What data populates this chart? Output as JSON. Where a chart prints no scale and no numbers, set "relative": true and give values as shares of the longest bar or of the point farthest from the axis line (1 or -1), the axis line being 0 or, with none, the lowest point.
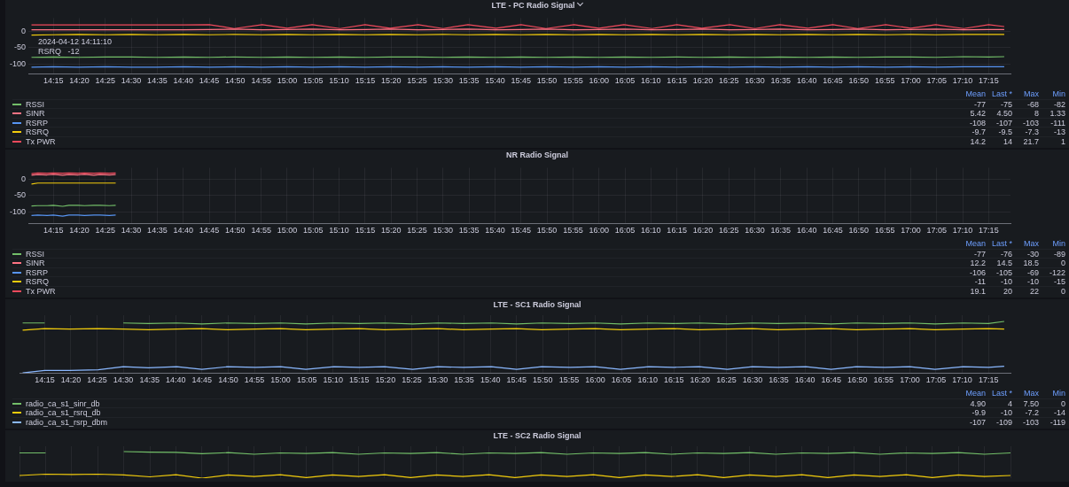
{
  "chart_data": [
    {
      "type": "line",
      "title": "LTE - PC Radio Signal",
      "legend": "bottom",
      "grid": true,
      "xlim": [
        14.17,
        17.32
      ],
      "ylim": [
        -130,
        40
      ],
      "yticks": [
        -100,
        -50,
        0
      ],
      "xticks": [
        {
          "value": 14.25,
          "label": "14:15"
        },
        {
          "value": 14.3333,
          "label": "14:20"
        },
        {
          "value": 14.4167,
          "label": "14:25"
        },
        {
          "value": 14.5,
          "label": "14:30"
        },
        {
          "value": 14.5833,
          "label": "14:35"
        },
        {
          "value": 14.6667,
          "label": "14:40"
        },
        {
          "value": 14.75,
          "label": "14:45"
        },
        {
          "value": 14.8333,
          "label": "14:50"
        },
        {
          "value": 14.9167,
          "label": "14:55"
        },
        {
          "value": 15,
          "label": "15:00"
        },
        {
          "value": 15.0833,
          "label": "15:05"
        },
        {
          "value": 15.1667,
          "label": "15:10"
        },
        {
          "value": 15.25,
          "label": "15:15"
        },
        {
          "value": 15.3333,
          "label": "15:20"
        },
        {
          "value": 15.4167,
          "label": "15:25"
        },
        {
          "value": 15.5,
          "label": "15:30"
        },
        {
          "value": 15.5833,
          "label": "15:35"
        },
        {
          "value": 15.6667,
          "label": "15:40"
        },
        {
          "value": 15.75,
          "label": "15:45"
        },
        {
          "value": 15.8333,
          "label": "15:50"
        },
        {
          "value": 15.9167,
          "label": "15:55"
        },
        {
          "value": 16,
          "label": "16:00"
        },
        {
          "value": 16.0833,
          "label": "16:05"
        },
        {
          "value": 16.1667,
          "label": "16:10"
        },
        {
          "value": 16.25,
          "label": "16:15"
        },
        {
          "value": 16.3333,
          "label": "16:20"
        },
        {
          "value": 16.4167,
          "label": "16:25"
        },
        {
          "value": 16.5,
          "label": "16:30"
        },
        {
          "value": 16.5833,
          "label": "16:35"
        },
        {
          "value": 16.6667,
          "label": "16:40"
        },
        {
          "value": 16.75,
          "label": "16:45"
        },
        {
          "value": 16.8333,
          "label": "16:50"
        },
        {
          "value": 16.9167,
          "label": "16:55"
        },
        {
          "value": 17,
          "label": "17:00"
        },
        {
          "value": 17.0833,
          "label": "17:05"
        },
        {
          "value": 17.1667,
          "label": "17:10"
        },
        {
          "value": 17.25,
          "label": "17:15"
        }
      ],
      "x": [
        14.18,
        14.25,
        14.33,
        14.42,
        14.5,
        14.58,
        14.67,
        14.75,
        14.83,
        14.92,
        15,
        15.08,
        15.17,
        15.25,
        15.33,
        15.42,
        15.5,
        15.58,
        15.67,
        15.75,
        15.83,
        15.92,
        16,
        16.08,
        16.17,
        16.25,
        16.33,
        16.42,
        16.5,
        16.58,
        16.67,
        16.75,
        16.83,
        16.92,
        17,
        17.08,
        17.17,
        17.25,
        17.3
      ],
      "series": [
        {
          "name": "RSSI",
          "color": "#73bf69",
          "values": [
            -80,
            -79,
            -80,
            -79,
            -79,
            -80,
            -79,
            -80,
            -79,
            -80,
            -79,
            -80,
            -79,
            -80,
            -79,
            -79,
            -80,
            -79,
            -80,
            -79,
            -80,
            -79,
            -80,
            -79,
            -80,
            -79,
            -80,
            -79,
            -80,
            -79,
            -80,
            -79,
            -80,
            -79,
            -79,
            -80,
            -78,
            -79,
            -78
          ]
        },
        {
          "name": "SINR",
          "color": "#ff7383",
          "values": [
            4,
            4,
            4,
            4,
            4,
            4,
            4,
            5,
            6,
            4,
            5,
            6,
            4,
            5,
            6,
            4,
            5,
            6,
            4,
            5,
            6,
            4,
            5,
            6,
            4,
            5,
            6,
            4,
            5,
            6,
            4,
            5,
            6,
            4,
            5,
            6,
            4,
            5,
            5
          ]
        },
        {
          "name": "RSRP",
          "color": "#5794f2",
          "values": [
            -110,
            -109,
            -110,
            -109,
            -110,
            -110,
            -109,
            -110,
            -109,
            -110,
            -109,
            -110,
            -109,
            -110,
            -109,
            -110,
            -109,
            -110,
            -109,
            -110,
            -109,
            -110,
            -109,
            -110,
            -109,
            -110,
            -109,
            -110,
            -109,
            -110,
            -109,
            -110,
            -109,
            -110,
            -109,
            -110,
            -109,
            -109,
            -109
          ]
        },
        {
          "name": "RSRQ",
          "color": "#f2cc0c",
          "values": [
            -12,
            -11,
            -10,
            -11,
            -10,
            -11,
            -10,
            -11,
            -10,
            -11,
            -10,
            -11,
            -10,
            -11,
            -10,
            -11,
            -10,
            -11,
            -10,
            -11,
            -10,
            -11,
            -10,
            -11,
            -10,
            -11,
            -10,
            -11,
            -10,
            -11,
            -10,
            -11,
            -10,
            -11,
            -10,
            -11,
            -10,
            -10,
            -10
          ]
        },
        {
          "name": "Tx PWR",
          "color": "#f2495c",
          "values": [
            19,
            19,
            19,
            19,
            19,
            19,
            19,
            20,
            8,
            20,
            9,
            20,
            8,
            20,
            9,
            20,
            8,
            20,
            9,
            20,
            8,
            20,
            9,
            20,
            8,
            20,
            9,
            20,
            8,
            20,
            9,
            20,
            8,
            20,
            9,
            20,
            8,
            20,
            14
          ]
        }
      ],
      "annotations": [
        {
          "text": "2024-04-12 14:11:10",
          "x": 14.19,
          "y": -12
        },
        {
          "text": "RSRQ   -12",
          "x": 14.19,
          "y": -12
        },
        "Mean",
        "Last *",
        "Max",
        "Min",
        "-77",
        "-75",
        "-68",
        "-82",
        "5.42",
        "4.50",
        "8",
        "1.33",
        "-108",
        "-107",
        "-103",
        "-111",
        "-9.7",
        "-9.5",
        "-7.3",
        "-13",
        "14.2",
        "14",
        "21.7",
        "1"
      ]
    },
    {
      "type": "line",
      "title": "NR Radio Signal",
      "legend": "bottom",
      "grid": true,
      "xlim": [
        14.17,
        17.32
      ],
      "ylim": [
        -135,
        35
      ],
      "yticks": [
        -100,
        -50,
        0
      ],
      "xticks": [
        {
          "value": 14.25,
          "label": "14:15"
        },
        {
          "value": 14.3333,
          "label": "14:20"
        },
        {
          "value": 14.4167,
          "label": "14:25"
        },
        {
          "value": 14.5,
          "label": "14:30"
        },
        {
          "value": 14.5833,
          "label": "14:35"
        },
        {
          "value": 14.6667,
          "label": "14:40"
        },
        {
          "value": 14.75,
          "label": "14:45"
        },
        {
          "value": 14.8333,
          "label": "14:50"
        },
        {
          "value": 14.9167,
          "label": "14:55"
        },
        {
          "value": 15,
          "label": "15:00"
        },
        {
          "value": 15.0833,
          "label": "15:05"
        },
        {
          "value": 15.1667,
          "label": "15:10"
        },
        {
          "value": 15.25,
          "label": "15:15"
        },
        {
          "value": 15.3333,
          "label": "15:20"
        },
        {
          "value": 15.4167,
          "label": "15:25"
        },
        {
          "value": 15.5,
          "label": "15:30"
        },
        {
          "value": 15.5833,
          "label": "15:35"
        },
        {
          "value": 15.6667,
          "label": "15:40"
        },
        {
          "value": 15.75,
          "label": "15:45"
        },
        {
          "value": 15.8333,
          "label": "15:50"
        },
        {
          "value": 15.9167,
          "label": "15:55"
        },
        {
          "value": 16,
          "label": "16:00"
        },
        {
          "value": 16.0833,
          "label": "16:05"
        },
        {
          "value": 16.1667,
          "label": "16:10"
        },
        {
          "value": 16.25,
          "label": "16:15"
        },
        {
          "value": 16.3333,
          "label": "16:20"
        },
        {
          "value": 16.4167,
          "label": "16:25"
        },
        {
          "value": 16.5,
          "label": "16:30"
        },
        {
          "value": 16.5833,
          "label": "16:35"
        },
        {
          "value": 16.6667,
          "label": "16:40"
        },
        {
          "value": 16.75,
          "label": "16:45"
        },
        {
          "value": 16.8333,
          "label": "16:50"
        },
        {
          "value": 16.9167,
          "label": "16:55"
        },
        {
          "value": 17,
          "label": "17:00"
        },
        {
          "value": 17.0833,
          "label": "17:05"
        },
        {
          "value": 17.1667,
          "label": "17:10"
        },
        {
          "value": 17.25,
          "label": "17:15"
        }
      ],
      "x": [
        14.18,
        14.2,
        14.23,
        14.25,
        14.28,
        14.3,
        14.33,
        14.35,
        14.38,
        14.4,
        14.43,
        14.45
      ],
      "series": [
        {
          "name": "RSSI",
          "color": "#73bf69",
          "values": [
            -82,
            -81,
            -81,
            -80,
            -83,
            -80,
            -80,
            -81,
            -80,
            -80,
            -81,
            -80
          ]
        },
        {
          "name": "SINR",
          "color": "#ff7383",
          "values": [
            12,
            14,
            13,
            15,
            12,
            14,
            13,
            15,
            12,
            14,
            13,
            14
          ]
        },
        {
          "name": "RSRP",
          "color": "#5794f2",
          "values": [
            -111,
            -110,
            -111,
            -110,
            -113,
            -110,
            -110,
            -111,
            -110,
            -110,
            -111,
            -110
          ]
        },
        {
          "name": "RSRQ",
          "color": "#f2cc0c",
          "values": [
            -15,
            -12,
            -12,
            -12,
            -12,
            -12,
            -12,
            -12,
            -12,
            -12,
            -12,
            -12
          ]
        },
        {
          "name": "Tx PWR",
          "color": "#f2495c",
          "values": [
            17,
            19,
            18,
            19,
            18,
            19,
            18,
            19,
            18,
            19,
            18,
            19
          ]
        }
      ],
      "annotations": [
        "Mean",
        "Last *",
        "Max",
        "Min",
        "-77",
        "-76",
        "-30",
        "-89",
        "12.2",
        "14.5",
        "18.5",
        "0",
        "-106",
        "-105",
        "-69",
        "-122",
        "-11",
        "-10",
        "-10",
        "-15",
        "19.1",
        "20",
        "22",
        "0"
      ]
    },
    {
      "type": "line",
      "title": "LTE - SC1 Radio Signal",
      "legend": "bottom",
      "grid": "x",
      "relative": true,
      "xlim": [
        14.17,
        17.32
      ],
      "xticks": [
        {
          "value": 14.25,
          "label": "14:15"
        },
        {
          "value": 14.3333,
          "label": "14:20"
        },
        {
          "value": 14.4167,
          "label": "14:25"
        },
        {
          "value": 14.5,
          "label": "14:30"
        },
        {
          "value": 14.5833,
          "label": "14:35"
        },
        {
          "value": 14.6667,
          "label": "14:40"
        },
        {
          "value": 14.75,
          "label": "14:45"
        },
        {
          "value": 14.8333,
          "label": "14:50"
        },
        {
          "value": 14.9167,
          "label": "14:55"
        },
        {
          "value": 15,
          "label": "15:00"
        },
        {
          "value": 15.0833,
          "label": "15:05"
        },
        {
          "value": 15.1667,
          "label": "15:10"
        },
        {
          "value": 15.25,
          "label": "15:15"
        },
        {
          "value": 15.3333,
          "label": "15:20"
        },
        {
          "value": 15.4167,
          "label": "15:25"
        },
        {
          "value": 15.5,
          "label": "15:30"
        },
        {
          "value": 15.5833,
          "label": "15:35"
        },
        {
          "value": 15.6667,
          "label": "15:40"
        },
        {
          "value": 15.75,
          "label": "15:45"
        },
        {
          "value": 15.8333,
          "label": "15:50"
        },
        {
          "value": 15.9167,
          "label": "15:55"
        },
        {
          "value": 16,
          "label": "16:00"
        },
        {
          "value": 16.0833,
          "label": "16:05"
        },
        {
          "value": 16.1667,
          "label": "16:10"
        },
        {
          "value": 16.25,
          "label": "16:15"
        },
        {
          "value": 16.3333,
          "label": "16:20"
        },
        {
          "value": 16.4167,
          "label": "16:25"
        },
        {
          "value": 16.5,
          "label": "16:30"
        },
        {
          "value": 16.5833,
          "label": "16:35"
        },
        {
          "value": 16.6667,
          "label": "16:40"
        },
        {
          "value": 16.75,
          "label": "16:45"
        },
        {
          "value": 16.8333,
          "label": "16:50"
        },
        {
          "value": 16.9167,
          "label": "16:55"
        },
        {
          "value": 17,
          "label": "17:00"
        },
        {
          "value": 17.0833,
          "label": "17:05"
        },
        {
          "value": 17.1667,
          "label": "17:10"
        },
        {
          "value": 17.25,
          "label": "17:15"
        }
      ],
      "x": [
        14.18,
        14.25,
        14.33,
        14.42,
        14.5,
        14.58,
        14.67,
        14.75,
        14.83,
        14.92,
        15,
        15.08,
        15.17,
        15.25,
        15.33,
        15.42,
        15.5,
        15.58,
        15.67,
        15.75,
        15.83,
        15.92,
        16,
        16.08,
        16.17,
        16.25,
        16.33,
        16.42,
        16.5,
        16.58,
        16.67,
        16.75,
        16.83,
        16.92,
        17,
        17.08,
        17.17,
        17.25,
        17.3
      ],
      "series": [
        {
          "name": "radio_ca_s1_sinr_db",
          "color": "#73bf69",
          "values": [
            0.97,
            0.97,
            null,
            null,
            0.97,
            0.96,
            0.97,
            0.95,
            0.97,
            0.96,
            0.97,
            0.95,
            0.97,
            0.96,
            0.97,
            0.95,
            0.97,
            0.96,
            0.97,
            0.95,
            0.97,
            0.96,
            0.97,
            0.95,
            0.97,
            0.96,
            0.97,
            0.95,
            0.97,
            0.96,
            0.97,
            0.95,
            0.97,
            0.96,
            0.97,
            0.95,
            0.97,
            0.96,
            1
          ]
        },
        {
          "name": "radio_ca_s1_rsrq_db",
          "color": "#f2cc0c",
          "values": [
            0.83,
            0.86,
            0.85,
            0.86,
            0.85,
            0.84,
            0.85,
            0.86,
            0.84,
            0.85,
            0.86,
            0.84,
            0.85,
            0.86,
            0.84,
            0.85,
            0.86,
            0.84,
            0.85,
            0.86,
            0.84,
            0.85,
            0.86,
            0.84,
            0.85,
            0.86,
            0.84,
            0.85,
            0.86,
            0.84,
            0.85,
            0.86,
            0.84,
            0.85,
            0.86,
            0.84,
            0.85,
            0.86,
            0.85
          ]
        },
        {
          "name": "radio_ca_s1_rsrp_dbm",
          "color": "#8ab8ff",
          "values": [
            0,
            0.05,
            0.05,
            0.06,
            0.12,
            0.1,
            0.12,
            0.07,
            0.12,
            0.11,
            0.12,
            0.07,
            0.12,
            0.11,
            0.12,
            0.07,
            0.12,
            0.11,
            0.12,
            0.07,
            0.12,
            0.11,
            0.12,
            0.07,
            0.12,
            0.11,
            0.12,
            0.07,
            0.12,
            0.11,
            0.12,
            0.07,
            0.12,
            0.11,
            0.12,
            0.07,
            0.12,
            0.11,
            0.13
          ]
        }
      ],
      "annotations": [
        "Mean",
        "Last *",
        "Max",
        "Min",
        "4.90",
        "4",
        "7.50",
        "0",
        "-9.9",
        "-10",
        "-7.2",
        "-14",
        "-107",
        "-109",
        "-103",
        "-119"
      ]
    },
    {
      "type": "line",
      "title": "LTE - SC2 Radio Signal",
      "grid": "x",
      "relative": true,
      "tick_labels": false,
      "categories": [
        null,
        null,
        null,
        null,
        null,
        null,
        null,
        null,
        null,
        null,
        null,
        null,
        null,
        null,
        null,
        null,
        null,
        null,
        null,
        null,
        null,
        null,
        null,
        null,
        null,
        null,
        null,
        null,
        null,
        null,
        null,
        null,
        null,
        null,
        null,
        null,
        null,
        null,
        null
      ],
      "series": [
        {
          "color": "#73bf69",
          "values": [
            0.95,
            0.95,
            null,
            null,
            1,
            0.98,
            0.97,
            0.92,
            0.96,
            0.9,
            0.95,
            0.93,
            0.96,
            0.9,
            0.95,
            0.93,
            0.96,
            0.9,
            0.95,
            0.93,
            0.96,
            0.9,
            0.95,
            0.93,
            0.96,
            0.9,
            0.95,
            0.93,
            0.96,
            0.9,
            0.95,
            0.93,
            0.96,
            0.9,
            0.95,
            0.93,
            0.96,
            0.9,
            0.95
          ]
        },
        {
          "color": "#f2cc0c",
          "values": [
            0.1,
            0.15,
            0.14,
            0.15,
            0.12,
            0.05,
            0.13,
            0,
            0.12,
            0.06,
            0.13,
            0.02,
            0.12,
            0.06,
            0.13,
            0.02,
            0.12,
            0.06,
            0.13,
            0.02,
            0.12,
            0.06,
            0.13,
            0.02,
            0.12,
            0.06,
            0.13,
            0.02,
            0.12,
            0.06,
            0.13,
            0.02,
            0.12,
            0.06,
            0.13,
            0.02,
            0.12,
            0.06,
            0.1
          ]
        }
      ]
    }
  ]
}
